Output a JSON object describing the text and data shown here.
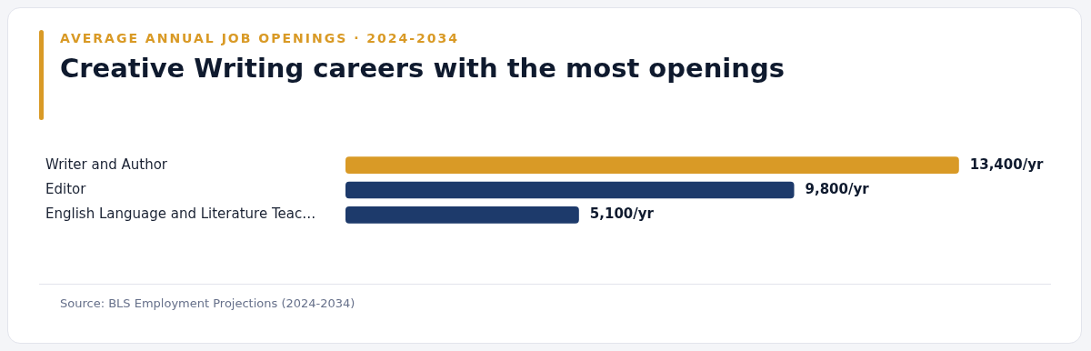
{
  "chart_data": {
    "type": "bar",
    "orientation": "horizontal",
    "subtitle": "AVERAGE ANNUAL JOB OPENINGS · 2024-2034",
    "title": "Creative Writing careers with the most openings",
    "categories": [
      "Writer and Author",
      "Editor",
      "English Language and Literature Teac…"
    ],
    "values": [
      13400,
      9800,
      5100
    ],
    "colors": [
      "#d99a26",
      "#1d3a6b",
      "#1d3a6b"
    ],
    "value_labels": [
      "13,400/yr",
      "9,800/yr",
      "5,100/yr"
    ],
    "annotations": [
      "Source: BLS Employment Projections (2024-2034)"
    ],
    "legend": false
  }
}
